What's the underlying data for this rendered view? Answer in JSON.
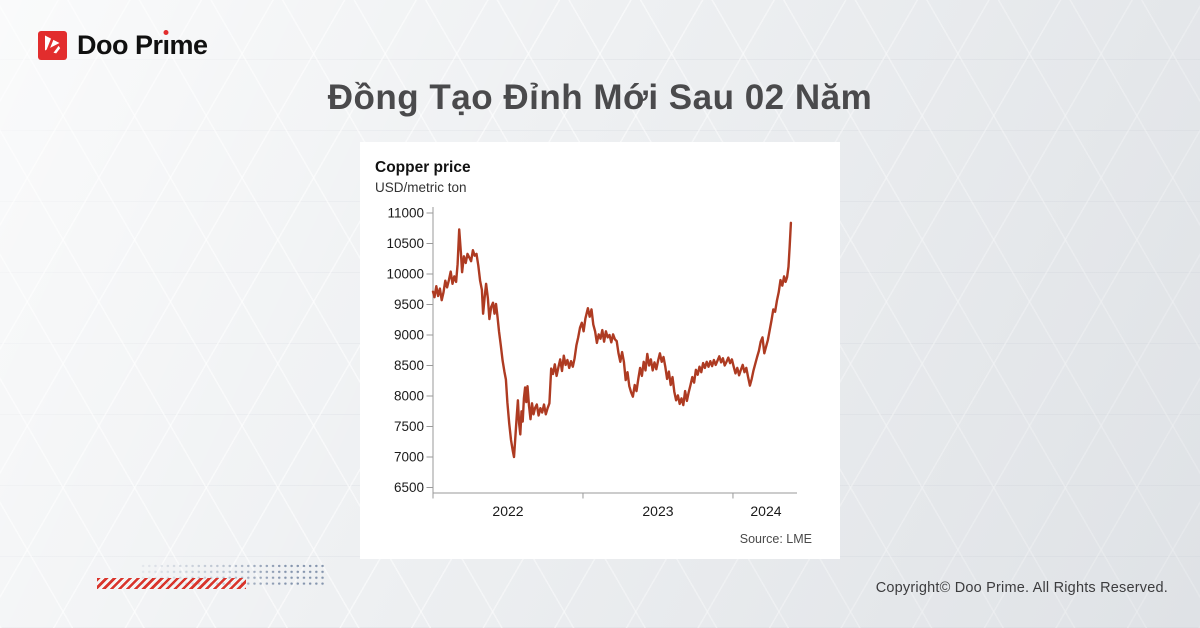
{
  "brand": {
    "name": "Doo Prime",
    "logo_text_pre": "Doo Pr",
    "logo_text_i": "ı",
    "logo_text_post": "me",
    "accent_color": "#e22d2d"
  },
  "title": "Đồng Tạo Đỉnh Mới Sau 02 Năm",
  "footer": {
    "copyright": "Copyright© Doo Prime. All Rights Reserved."
  },
  "chart_data": {
    "type": "line",
    "title": "Copper price",
    "subtitle": "USD/metric ton",
    "source": "Source: LME",
    "line_color": "#ae3b22",
    "axis_color": "#9a9a9a",
    "grid": false,
    "legend": "none",
    "xlim": [
      2022.0,
      2024.427
    ],
    "ylim": [
      6500,
      11000
    ],
    "y_ticks": [
      11000,
      10500,
      10000,
      9500,
      9000,
      8500,
      8000,
      7500,
      7000,
      6500
    ],
    "x_tick_years": [
      2022,
      2023,
      2024
    ],
    "x_labels": [
      {
        "label": "2022",
        "t": 2022.5
      },
      {
        "label": "2023",
        "t": 2023.5
      },
      {
        "label": "2024",
        "t": 2024.22
      }
    ],
    "points": [
      [
        2022.0,
        9710
      ],
      [
        2022.01,
        9620
      ],
      [
        2022.022,
        9800
      ],
      [
        2022.034,
        9640
      ],
      [
        2022.046,
        9760
      ],
      [
        2022.058,
        9570
      ],
      [
        2022.07,
        9700
      ],
      [
        2022.082,
        9890
      ],
      [
        2022.094,
        9780
      ],
      [
        2022.106,
        9900
      ],
      [
        2022.118,
        10040
      ],
      [
        2022.13,
        9840
      ],
      [
        2022.142,
        9960
      ],
      [
        2022.154,
        9870
      ],
      [
        2022.164,
        10160
      ],
      [
        2022.175,
        10730
      ],
      [
        2022.186,
        10350
      ],
      [
        2022.194,
        10030
      ],
      [
        2022.206,
        10290
      ],
      [
        2022.218,
        10180
      ],
      [
        2022.23,
        10330
      ],
      [
        2022.242,
        10270
      ],
      [
        2022.254,
        10210
      ],
      [
        2022.266,
        10390
      ],
      [
        2022.278,
        10300
      ],
      [
        2022.29,
        10330
      ],
      [
        2022.302,
        10140
      ],
      [
        2022.314,
        9890
      ],
      [
        2022.326,
        9740
      ],
      [
        2022.334,
        9350
      ],
      [
        2022.344,
        9610
      ],
      [
        2022.354,
        9840
      ],
      [
        2022.366,
        9600
      ],
      [
        2022.376,
        9260
      ],
      [
        2022.388,
        9460
      ],
      [
        2022.4,
        9530
      ],
      [
        2022.41,
        9350
      ],
      [
        2022.42,
        9510
      ],
      [
        2022.43,
        9300
      ],
      [
        2022.44,
        9060
      ],
      [
        2022.452,
        8830
      ],
      [
        2022.464,
        8580
      ],
      [
        2022.476,
        8400
      ],
      [
        2022.486,
        8270
      ],
      [
        2022.496,
        7890
      ],
      [
        2022.508,
        7550
      ],
      [
        2022.52,
        7280
      ],
      [
        2022.532,
        7100
      ],
      [
        2022.54,
        7000
      ],
      [
        2022.55,
        7360
      ],
      [
        2022.558,
        7660
      ],
      [
        2022.566,
        7930
      ],
      [
        2022.574,
        7550
      ],
      [
        2022.582,
        7370
      ],
      [
        2022.59,
        7750
      ],
      [
        2022.598,
        7580
      ],
      [
        2022.606,
        7960
      ],
      [
        2022.614,
        8140
      ],
      [
        2022.622,
        7900
      ],
      [
        2022.63,
        8160
      ],
      [
        2022.64,
        7840
      ],
      [
        2022.65,
        7620
      ],
      [
        2022.66,
        7880
      ],
      [
        2022.67,
        7700
      ],
      [
        2022.68,
        7800
      ],
      [
        2022.692,
        7860
      ],
      [
        2022.704,
        7680
      ],
      [
        2022.716,
        7800
      ],
      [
        2022.728,
        7730
      ],
      [
        2022.74,
        7860
      ],
      [
        2022.752,
        7700
      ],
      [
        2022.764,
        7800
      ],
      [
        2022.776,
        7880
      ],
      [
        2022.788,
        8450
      ],
      [
        2022.8,
        8360
      ],
      [
        2022.812,
        8520
      ],
      [
        2022.824,
        8330
      ],
      [
        2022.836,
        8470
      ],
      [
        2022.848,
        8600
      ],
      [
        2022.86,
        8410
      ],
      [
        2022.872,
        8660
      ],
      [
        2022.884,
        8510
      ],
      [
        2022.896,
        8590
      ],
      [
        2022.908,
        8460
      ],
      [
        2022.92,
        8570
      ],
      [
        2022.932,
        8480
      ],
      [
        2022.944,
        8620
      ],
      [
        2022.956,
        8830
      ],
      [
        2022.968,
        8960
      ],
      [
        2022.98,
        9120
      ],
      [
        2022.992,
        9200
      ],
      [
        2023.004,
        9060
      ],
      [
        2023.016,
        9270
      ],
      [
        2023.033,
        9440
      ],
      [
        2023.045,
        9300
      ],
      [
        2023.057,
        9420
      ],
      [
        2023.069,
        9170
      ],
      [
        2023.081,
        9060
      ],
      [
        2023.093,
        8870
      ],
      [
        2023.105,
        9010
      ],
      [
        2023.117,
        8940
      ],
      [
        2023.129,
        9080
      ],
      [
        2023.141,
        8890
      ],
      [
        2023.153,
        9060
      ],
      [
        2023.165,
        8960
      ],
      [
        2023.177,
        9000
      ],
      [
        2023.189,
        8880
      ],
      [
        2023.201,
        9010
      ],
      [
        2023.213,
        8930
      ],
      [
        2023.225,
        8900
      ],
      [
        2023.237,
        8700
      ],
      [
        2023.249,
        8560
      ],
      [
        2023.261,
        8720
      ],
      [
        2023.273,
        8560
      ],
      [
        2023.285,
        8260
      ],
      [
        2023.297,
        8390
      ],
      [
        2023.309,
        8160
      ],
      [
        2023.321,
        8060
      ],
      [
        2023.333,
        7990
      ],
      [
        2023.345,
        8180
      ],
      [
        2023.357,
        8080
      ],
      [
        2023.369,
        8280
      ],
      [
        2023.381,
        8460
      ],
      [
        2023.393,
        8330
      ],
      [
        2023.405,
        8560
      ],
      [
        2023.417,
        8420
      ],
      [
        2023.429,
        8690
      ],
      [
        2023.441,
        8500
      ],
      [
        2023.453,
        8600
      ],
      [
        2023.465,
        8420
      ],
      [
        2023.477,
        8550
      ],
      [
        2023.489,
        8440
      ],
      [
        2023.501,
        8580
      ],
      [
        2023.513,
        8700
      ],
      [
        2023.525,
        8560
      ],
      [
        2023.537,
        8640
      ],
      [
        2023.549,
        8480
      ],
      [
        2023.561,
        8280
      ],
      [
        2023.573,
        8400
      ],
      [
        2023.585,
        8180
      ],
      [
        2023.597,
        8310
      ],
      [
        2023.609,
        8070
      ],
      [
        2023.621,
        7930
      ],
      [
        2023.633,
        8010
      ],
      [
        2023.645,
        7870
      ],
      [
        2023.657,
        7960
      ],
      [
        2023.669,
        7850
      ],
      [
        2023.681,
        8080
      ],
      [
        2023.693,
        7920
      ],
      [
        2023.705,
        8060
      ],
      [
        2023.717,
        8180
      ],
      [
        2023.729,
        8310
      ],
      [
        2023.741,
        8220
      ],
      [
        2023.753,
        8430
      ],
      [
        2023.765,
        8350
      ],
      [
        2023.777,
        8480
      ],
      [
        2023.789,
        8390
      ],
      [
        2023.801,
        8540
      ],
      [
        2023.813,
        8460
      ],
      [
        2023.825,
        8560
      ],
      [
        2023.837,
        8480
      ],
      [
        2023.849,
        8570
      ],
      [
        2023.861,
        8490
      ],
      [
        2023.873,
        8590
      ],
      [
        2023.885,
        8510
      ],
      [
        2023.897,
        8580
      ],
      [
        2023.909,
        8650
      ],
      [
        2023.921,
        8550
      ],
      [
        2023.933,
        8620
      ],
      [
        2023.945,
        8500
      ],
      [
        2023.957,
        8560
      ],
      [
        2023.969,
        8630
      ],
      [
        2023.981,
        8540
      ],
      [
        2023.993,
        8600
      ],
      [
        2024.005,
        8480
      ],
      [
        2024.017,
        8370
      ],
      [
        2024.029,
        8460
      ],
      [
        2024.041,
        8340
      ],
      [
        2024.053,
        8430
      ],
      [
        2024.065,
        8510
      ],
      [
        2024.077,
        8390
      ],
      [
        2024.089,
        8460
      ],
      [
        2024.101,
        8310
      ],
      [
        2024.113,
        8170
      ],
      [
        2024.125,
        8280
      ],
      [
        2024.137,
        8420
      ],
      [
        2024.149,
        8530
      ],
      [
        2024.161,
        8640
      ],
      [
        2024.173,
        8740
      ],
      [
        2024.185,
        8890
      ],
      [
        2024.197,
        8960
      ],
      [
        2024.209,
        8700
      ],
      [
        2024.221,
        8810
      ],
      [
        2024.233,
        8920
      ],
      [
        2024.245,
        9080
      ],
      [
        2024.257,
        9240
      ],
      [
        2024.269,
        9420
      ],
      [
        2024.281,
        9380
      ],
      [
        2024.293,
        9560
      ],
      [
        2024.305,
        9700
      ],
      [
        2024.317,
        9900
      ],
      [
        2024.329,
        9810
      ],
      [
        2024.341,
        9960
      ],
      [
        2024.351,
        9870
      ],
      [
        2024.361,
        9950
      ],
      [
        2024.37,
        10120
      ],
      [
        2024.378,
        10460
      ],
      [
        2024.386,
        10840
      ]
    ]
  }
}
